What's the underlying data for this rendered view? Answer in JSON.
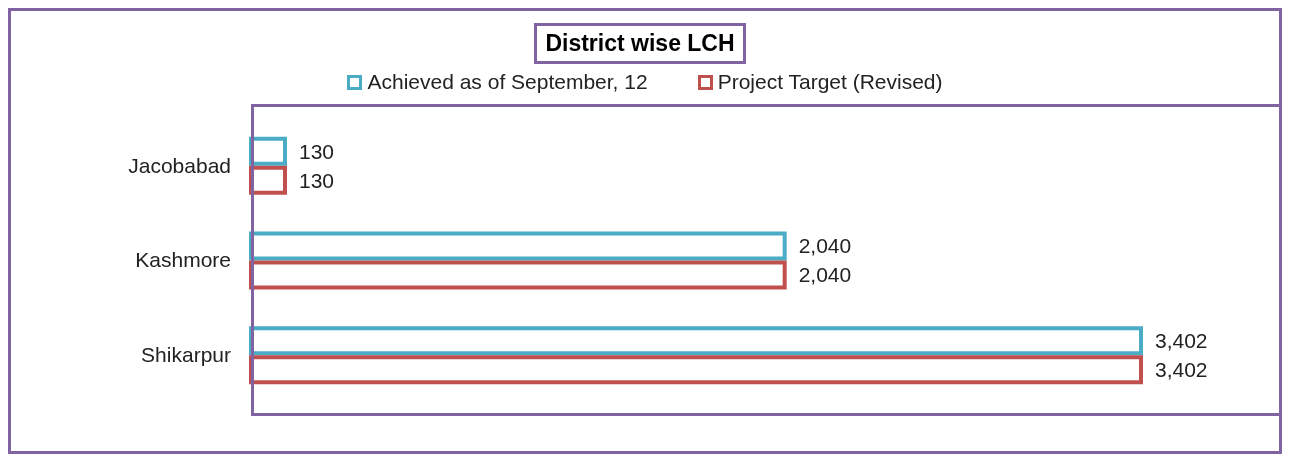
{
  "chart_data": {
    "type": "bar",
    "orientation": "horizontal",
    "title": "District wise LCH",
    "categories": [
      "Jacobabad",
      "Kashmore",
      "Shikarpur"
    ],
    "series": [
      {
        "name": "Achieved as of September, 12",
        "color": "#4bacc6",
        "values": [
          130,
          2040,
          3402
        ],
        "value_labels": [
          "130",
          "2,040",
          "3,402"
        ]
      },
      {
        "name": "Project Target (Revised)",
        "color": "#c0504d",
        "values": [
          130,
          2040,
          3402
        ],
        "value_labels": [
          "130",
          "2,040",
          "3,402"
        ]
      }
    ],
    "legend": "top"
  }
}
